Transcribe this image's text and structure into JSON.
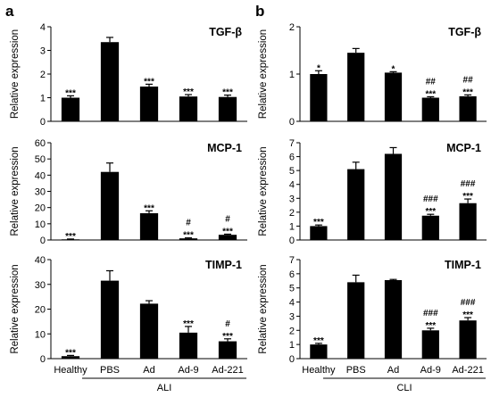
{
  "panel_labels": [
    "a",
    "b"
  ],
  "group_labels": [
    "ALI",
    "CLI"
  ],
  "categories": [
    "Healthy",
    "PBS",
    "Ad",
    "Ad-9",
    "Ad-221"
  ],
  "chart_data": [
    {
      "type": "bar",
      "panel": "a",
      "title": "TGF-β",
      "ylabel": "Relative expression",
      "categories": [
        "Healthy",
        "PBS",
        "Ad",
        "Ad-9",
        "Ad-221"
      ],
      "values": [
        1.0,
        3.35,
        1.47,
        1.05,
        1.03
      ],
      "errors": [
        0.08,
        0.2,
        0.1,
        0.08,
        0.08
      ],
      "ylim": [
        0,
        4
      ],
      "yticks": [
        0,
        1,
        2,
        3,
        4
      ],
      "annotations": [
        [
          "***"
        ],
        [],
        [
          "***"
        ],
        [
          "***"
        ],
        [
          "***"
        ]
      ]
    },
    {
      "type": "bar",
      "panel": "a",
      "title": "MCP-1",
      "ylabel": "Relative expression",
      "categories": [
        "Healthy",
        "PBS",
        "Ad",
        "Ad-9",
        "Ad-221"
      ],
      "values": [
        0.4,
        42,
        16.5,
        1.0,
        3.2
      ],
      "errors": [
        0.2,
        5.5,
        1.5,
        0.3,
        0.4
      ],
      "ylim": [
        0,
        60
      ],
      "yticks": [
        0,
        10,
        20,
        30,
        40,
        50,
        60
      ],
      "annotations": [
        [
          "***"
        ],
        [],
        [
          "***"
        ],
        [
          "#",
          "***"
        ],
        [
          "#",
          "***"
        ]
      ]
    },
    {
      "type": "bar",
      "panel": "a",
      "title": "TIMP-1",
      "ylabel": "Relative expression",
      "categories": [
        "Healthy",
        "PBS",
        "Ad",
        "Ad-9",
        "Ad-221"
      ],
      "values": [
        1.0,
        31.5,
        22.2,
        10.5,
        7.0
      ],
      "errors": [
        0.3,
        4.0,
        1.2,
        2.5,
        1.0
      ],
      "ylim": [
        0,
        40
      ],
      "yticks": [
        0,
        10,
        20,
        30,
        40
      ],
      "annotations": [
        [
          "***"
        ],
        [],
        [],
        [
          "***"
        ],
        [
          "#",
          "***"
        ]
      ]
    },
    {
      "type": "bar",
      "panel": "b",
      "title": "TGF-β",
      "ylabel": "Relative expression",
      "categories": [
        "Healthy",
        "PBS",
        "Ad",
        "Ad-9",
        "Ad-221"
      ],
      "values": [
        1.0,
        1.45,
        1.03,
        0.5,
        0.53
      ],
      "errors": [
        0.07,
        0.09,
        0.02,
        0.02,
        0.03
      ],
      "ylim": [
        0,
        2
      ],
      "yticks": [
        0,
        1,
        2
      ],
      "annotations": [
        [
          "*"
        ],
        [],
        [
          "*"
        ],
        [
          "##",
          "***"
        ],
        [
          "##",
          "***"
        ]
      ]
    },
    {
      "type": "bar",
      "panel": "b",
      "title": "MCP-1",
      "ylabel": "Relative expression",
      "categories": [
        "Healthy",
        "PBS",
        "Ad",
        "Ad-9",
        "Ad-221"
      ],
      "values": [
        1.0,
        5.1,
        6.2,
        1.75,
        2.65
      ],
      "errors": [
        0.08,
        0.5,
        0.45,
        0.1,
        0.3
      ],
      "ylim": [
        0,
        7
      ],
      "yticks": [
        0,
        1,
        2,
        3,
        4,
        5,
        6,
        7
      ],
      "annotations": [
        [
          "***"
        ],
        [],
        [],
        [
          "###",
          "***"
        ],
        [
          "###",
          "***"
        ]
      ]
    },
    {
      "type": "bar",
      "panel": "b",
      "title": "TIMP-1",
      "ylabel": "Relative expression",
      "categories": [
        "Healthy",
        "PBS",
        "Ad",
        "Ad-9",
        "Ad-221"
      ],
      "values": [
        1.0,
        5.4,
        5.55,
        2.0,
        2.7
      ],
      "errors": [
        0.08,
        0.5,
        0.05,
        0.15,
        0.2
      ],
      "ylim": [
        0,
        7
      ],
      "yticks": [
        0,
        1,
        2,
        3,
        4,
        5,
        6,
        7
      ],
      "annotations": [
        [
          "***"
        ],
        [],
        [],
        [
          "###",
          "***"
        ],
        [
          "###",
          "***"
        ]
      ]
    }
  ]
}
